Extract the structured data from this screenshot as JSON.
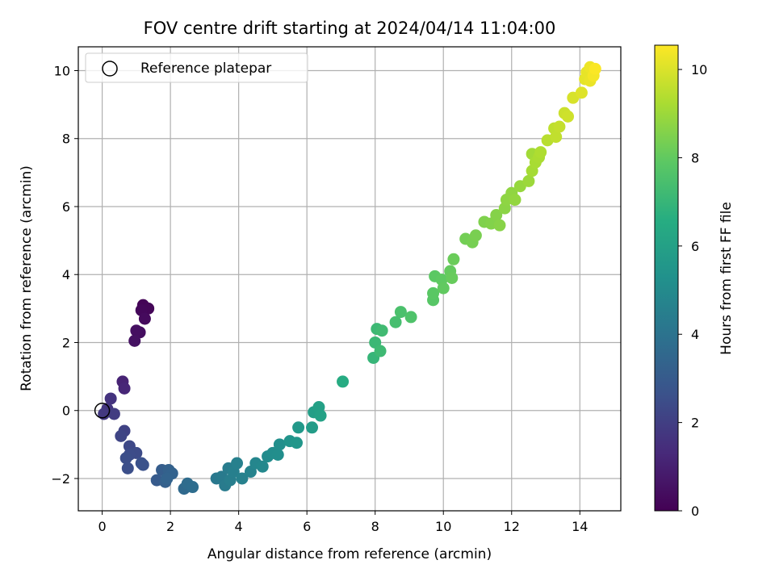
{
  "chart_data": {
    "type": "scatter",
    "title": "FOV centre drift starting at 2024/04/14 11:04:00",
    "xlabel": "Angular distance from reference (arcmin)",
    "ylabel": "Rotation from reference (arcmin)",
    "xlim": [
      -0.7,
      15.2
    ],
    "ylim": [
      -2.95,
      10.7
    ],
    "xticks": [
      "0",
      "2",
      "4",
      "6",
      "8",
      "10",
      "12",
      "14"
    ],
    "yticks": [
      "−2",
      "0",
      "2",
      "4",
      "6",
      "8",
      "10"
    ],
    "grid": true,
    "legend": {
      "position": "upper-left",
      "entries": [
        "Reference platepar"
      ]
    },
    "reference_point": {
      "x": 0,
      "y": 0,
      "marker": "open-circle"
    },
    "colorbar": {
      "label": "Hours from first FF file",
      "colormap": "viridis",
      "range": [
        0,
        10.55
      ],
      "ticks": [
        "0",
        "2",
        "4",
        "6",
        "8",
        "10"
      ]
    },
    "point_color_field": "hours",
    "points": [
      {
        "x": 1.2,
        "y": 3.1,
        "hours": 0.1
      },
      {
        "x": 1.35,
        "y": 3.0,
        "hours": 0.15
      },
      {
        "x": 1.15,
        "y": 2.95,
        "hours": 0.2
      },
      {
        "x": 1.25,
        "y": 2.7,
        "hours": 0.3
      },
      {
        "x": 1.1,
        "y": 2.3,
        "hours": 0.4
      },
      {
        "x": 1.0,
        "y": 2.35,
        "hours": 0.45
      },
      {
        "x": 0.95,
        "y": 2.05,
        "hours": 0.5
      },
      {
        "x": 0.6,
        "y": 0.85,
        "hours": 1.1
      },
      {
        "x": 0.65,
        "y": 0.65,
        "hours": 1.2
      },
      {
        "x": 0.25,
        "y": 0.35,
        "hours": 1.6
      },
      {
        "x": 0.15,
        "y": 0.05,
        "hours": 1.7
      },
      {
        "x": 0.05,
        "y": -0.1,
        "hours": 1.8
      },
      {
        "x": 0.35,
        "y": -0.1,
        "hours": 1.9
      },
      {
        "x": 0.65,
        "y": -0.6,
        "hours": 2.1
      },
      {
        "x": 0.55,
        "y": -0.75,
        "hours": 2.2
      },
      {
        "x": 0.8,
        "y": -1.05,
        "hours": 2.3
      },
      {
        "x": 1.0,
        "y": -1.25,
        "hours": 2.4
      },
      {
        "x": 0.8,
        "y": -1.3,
        "hours": 2.45
      },
      {
        "x": 0.7,
        "y": -1.4,
        "hours": 2.5
      },
      {
        "x": 0.75,
        "y": -1.7,
        "hours": 2.55
      },
      {
        "x": 1.15,
        "y": -1.55,
        "hours": 2.6
      },
      {
        "x": 1.2,
        "y": -1.6,
        "hours": 2.65
      },
      {
        "x": 1.6,
        "y": -2.05,
        "hours": 3.0
      },
      {
        "x": 1.75,
        "y": -1.75,
        "hours": 3.1
      },
      {
        "x": 1.85,
        "y": -2.1,
        "hours": 3.2
      },
      {
        "x": 1.95,
        "y": -1.75,
        "hours": 3.25
      },
      {
        "x": 2.05,
        "y": -1.85,
        "hours": 3.3
      },
      {
        "x": 1.9,
        "y": -2.0,
        "hours": 3.35
      },
      {
        "x": 2.4,
        "y": -2.3,
        "hours": 3.6
      },
      {
        "x": 2.5,
        "y": -2.15,
        "hours": 3.7
      },
      {
        "x": 2.65,
        "y": -2.25,
        "hours": 3.75
      },
      {
        "x": 3.35,
        "y": -2.0,
        "hours": 4.2
      },
      {
        "x": 3.5,
        "y": -1.95,
        "hours": 4.3
      },
      {
        "x": 3.6,
        "y": -2.2,
        "hours": 4.35
      },
      {
        "x": 3.7,
        "y": -1.7,
        "hours": 4.4
      },
      {
        "x": 3.75,
        "y": -2.05,
        "hours": 4.45
      },
      {
        "x": 3.85,
        "y": -1.8,
        "hours": 4.5
      },
      {
        "x": 3.95,
        "y": -1.55,
        "hours": 4.55
      },
      {
        "x": 4.1,
        "y": -2.0,
        "hours": 4.6
      },
      {
        "x": 4.35,
        "y": -1.8,
        "hours": 4.7
      },
      {
        "x": 4.5,
        "y": -1.55,
        "hours": 4.8
      },
      {
        "x": 4.7,
        "y": -1.65,
        "hours": 4.9
      },
      {
        "x": 4.85,
        "y": -1.35,
        "hours": 5.0
      },
      {
        "x": 5.0,
        "y": -1.25,
        "hours": 5.1
      },
      {
        "x": 5.15,
        "y": -1.3,
        "hours": 5.15
      },
      {
        "x": 5.2,
        "y": -1.0,
        "hours": 5.2
      },
      {
        "x": 5.5,
        "y": -0.9,
        "hours": 5.4
      },
      {
        "x": 5.7,
        "y": -0.95,
        "hours": 5.5
      },
      {
        "x": 5.75,
        "y": -0.5,
        "hours": 5.6
      },
      {
        "x": 6.15,
        "y": -0.5,
        "hours": 5.8
      },
      {
        "x": 6.2,
        "y": -0.05,
        "hours": 5.9
      },
      {
        "x": 6.35,
        "y": 0.1,
        "hours": 6.0
      },
      {
        "x": 6.4,
        "y": -0.15,
        "hours": 6.05
      },
      {
        "x": 7.05,
        "y": 0.85,
        "hours": 6.5
      },
      {
        "x": 7.95,
        "y": 1.55,
        "hours": 7.0
      },
      {
        "x": 8.0,
        "y": 2.0,
        "hours": 7.1
      },
      {
        "x": 8.05,
        "y": 2.4,
        "hours": 7.15
      },
      {
        "x": 8.15,
        "y": 1.75,
        "hours": 7.2
      },
      {
        "x": 8.2,
        "y": 2.35,
        "hours": 7.25
      },
      {
        "x": 8.6,
        "y": 2.6,
        "hours": 7.4
      },
      {
        "x": 8.75,
        "y": 2.9,
        "hours": 7.5
      },
      {
        "x": 9.05,
        "y": 2.75,
        "hours": 7.6
      },
      {
        "x": 9.7,
        "y": 3.25,
        "hours": 7.8
      },
      {
        "x": 9.7,
        "y": 3.45,
        "hours": 7.85
      },
      {
        "x": 9.75,
        "y": 3.95,
        "hours": 7.9
      },
      {
        "x": 9.95,
        "y": 3.85,
        "hours": 7.95
      },
      {
        "x": 10.0,
        "y": 3.6,
        "hours": 8.0
      },
      {
        "x": 10.2,
        "y": 4.1,
        "hours": 8.05
      },
      {
        "x": 10.25,
        "y": 3.9,
        "hours": 8.1
      },
      {
        "x": 10.3,
        "y": 4.45,
        "hours": 8.15
      },
      {
        "x": 10.65,
        "y": 5.05,
        "hours": 8.3
      },
      {
        "x": 10.85,
        "y": 4.95,
        "hours": 8.35
      },
      {
        "x": 10.95,
        "y": 5.15,
        "hours": 8.4
      },
      {
        "x": 11.2,
        "y": 5.55,
        "hours": 8.5
      },
      {
        "x": 11.4,
        "y": 5.5,
        "hours": 8.55
      },
      {
        "x": 11.55,
        "y": 5.75,
        "hours": 8.6
      },
      {
        "x": 11.65,
        "y": 5.45,
        "hours": 8.65
      },
      {
        "x": 11.8,
        "y": 5.95,
        "hours": 8.7
      },
      {
        "x": 11.85,
        "y": 6.2,
        "hours": 8.75
      },
      {
        "x": 12.0,
        "y": 6.4,
        "hours": 8.8
      },
      {
        "x": 12.1,
        "y": 6.2,
        "hours": 8.85
      },
      {
        "x": 12.25,
        "y": 6.6,
        "hours": 8.9
      },
      {
        "x": 12.5,
        "y": 6.75,
        "hours": 9.0
      },
      {
        "x": 12.6,
        "y": 7.55,
        "hours": 9.1
      },
      {
        "x": 12.6,
        "y": 7.05,
        "hours": 9.15
      },
      {
        "x": 12.7,
        "y": 7.3,
        "hours": 9.2
      },
      {
        "x": 12.8,
        "y": 7.45,
        "hours": 9.25
      },
      {
        "x": 12.85,
        "y": 7.6,
        "hours": 9.3
      },
      {
        "x": 13.05,
        "y": 7.95,
        "hours": 9.45
      },
      {
        "x": 13.25,
        "y": 8.3,
        "hours": 9.55
      },
      {
        "x": 13.3,
        "y": 8.05,
        "hours": 9.6
      },
      {
        "x": 13.4,
        "y": 8.35,
        "hours": 9.65
      },
      {
        "x": 13.55,
        "y": 8.75,
        "hours": 9.75
      },
      {
        "x": 13.65,
        "y": 8.65,
        "hours": 9.8
      },
      {
        "x": 13.8,
        "y": 9.2,
        "hours": 9.95
      },
      {
        "x": 14.05,
        "y": 9.35,
        "hours": 10.05
      },
      {
        "x": 14.15,
        "y": 9.75,
        "hours": 10.15
      },
      {
        "x": 14.2,
        "y": 9.95,
        "hours": 10.2
      },
      {
        "x": 14.3,
        "y": 9.7,
        "hours": 10.25
      },
      {
        "x": 14.3,
        "y": 10.1,
        "hours": 10.3
      },
      {
        "x": 14.4,
        "y": 9.85,
        "hours": 10.4
      },
      {
        "x": 14.45,
        "y": 10.05,
        "hours": 10.5
      }
    ]
  }
}
